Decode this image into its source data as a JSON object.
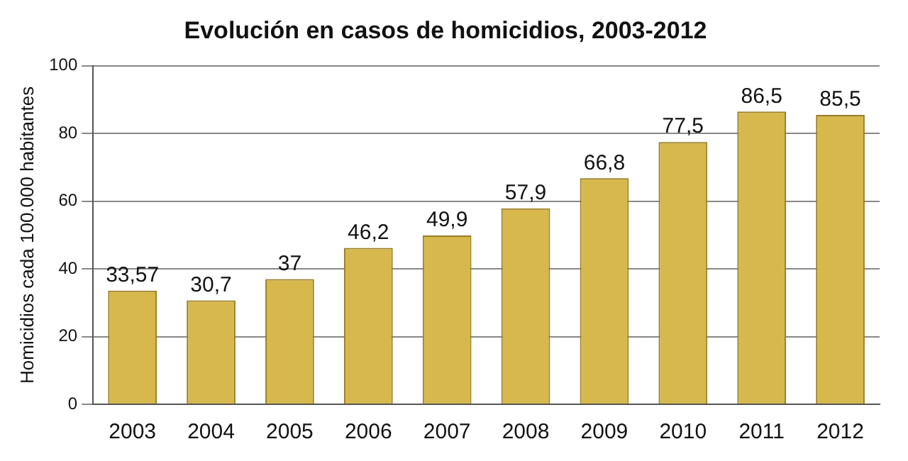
{
  "chart_data": {
    "type": "bar",
    "title": "Evolución en casos de homicidios, 2003-2012",
    "ylabel": "Homicidios cada 100.000 habitantes",
    "categories": [
      "2003",
      "2004",
      "2005",
      "2006",
      "2007",
      "2008",
      "2009",
      "2010",
      "2011",
      "2012"
    ],
    "values": [
      33.57,
      30.7,
      37,
      46.2,
      49.9,
      57.9,
      66.8,
      77.5,
      86.5,
      85.5
    ],
    "value_labels": [
      "33,57",
      "30,7",
      "37",
      "46,2",
      "49,9",
      "57,9",
      "66,8",
      "77,5",
      "86,5",
      "85,5"
    ],
    "color": "#d6b84c",
    "ylim": [
      0,
      100
    ],
    "yticks": [
      0,
      20,
      40,
      60,
      80,
      100
    ],
    "grid": "y",
    "legend": false
  }
}
